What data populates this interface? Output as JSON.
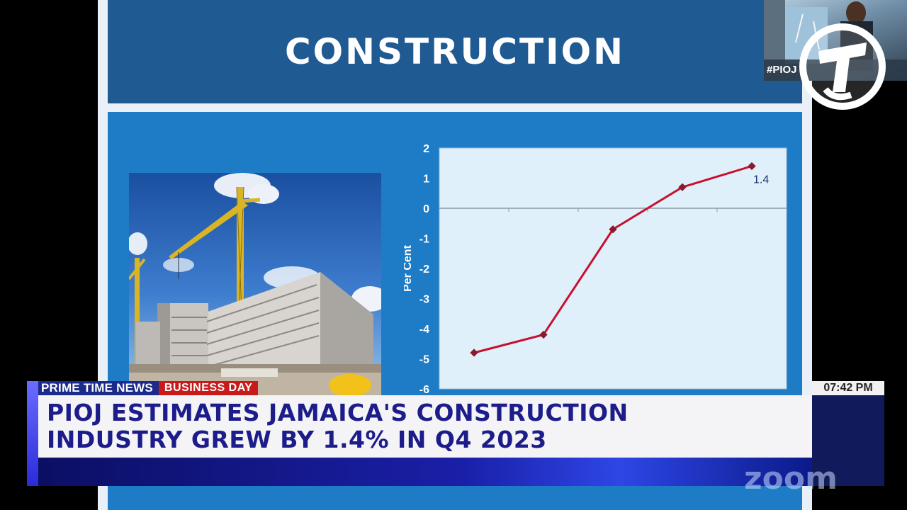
{
  "slide": {
    "title": "CONSTRUCTION"
  },
  "chart_data": {
    "type": "line",
    "x": [
      1,
      2,
      3,
      4,
      5
    ],
    "values": [
      -4.8,
      -4.2,
      -0.7,
      0.7,
      1.4
    ],
    "ylabel": "Per Cent",
    "ylim": [
      -6,
      2
    ],
    "yticks": [
      "2",
      "1",
      "0",
      "-1",
      "-2",
      "-3",
      "-4",
      "-5",
      "-6"
    ],
    "data_labels": {
      "last": "1.4"
    },
    "line_color": "#c8102e",
    "plot_bg": "#dff0fb",
    "grid": false
  },
  "pip": {
    "hashtag": "#PIOJ"
  },
  "lower_third": {
    "program": "PRIME TIME NEWS",
    "segment": "BUSINESS DAY",
    "time": "07:42 PM",
    "headline_line1": "PIOJ ESTIMATES JAMAICA'S CONSTRUCTION",
    "headline_line2": "INDUSTRY GREW BY 1.4% IN Q4 2023"
  },
  "watermark": {
    "text": "zoom"
  },
  "colors": {
    "slide_title_bg": "#1f5a93",
    "content_bg": "#1e7cc6",
    "headline_text": "#1c1c8a",
    "segment_red": "#c81a1a"
  }
}
